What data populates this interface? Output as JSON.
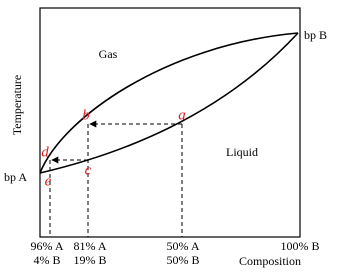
{
  "axes": {
    "y_label": "Temperature",
    "x_label": "Composition"
  },
  "regions": {
    "gas": "Gas",
    "liquid": "Liquid"
  },
  "boiling_points": {
    "a": "bp A",
    "b": "bp B"
  },
  "points": [
    "a",
    "b",
    "c",
    "d",
    "e"
  ],
  "composition_ticks": [
    {
      "top": "96% A",
      "bottom": "4% B"
    },
    {
      "top": "81% A",
      "bottom": "19% B"
    },
    {
      "top": "50% A",
      "bottom": "50% B"
    },
    {
      "top": "100% B"
    }
  ]
}
